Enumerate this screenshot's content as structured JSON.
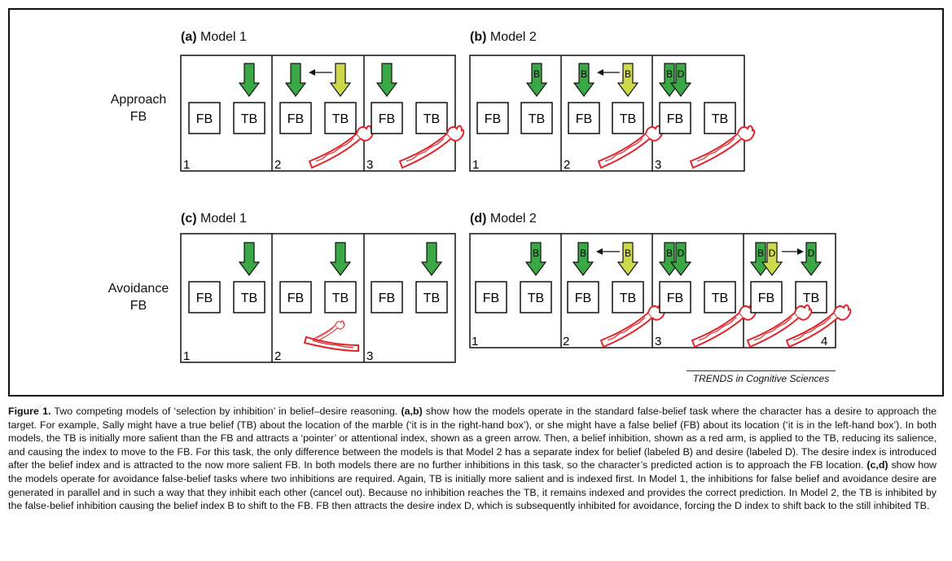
{
  "rows": {
    "approach_label": "Approach\nFB",
    "avoidance_label": "Avoidance\nFB"
  },
  "panels": [
    {
      "id": "a",
      "letter": "(a)",
      "title": "Model 1"
    },
    {
      "id": "b",
      "letter": "(b)",
      "title": "Model 2"
    },
    {
      "id": "c",
      "letter": "(c)",
      "title": "Model 1"
    },
    {
      "id": "d",
      "letter": "(d)",
      "title": "Model 2"
    }
  ],
  "boxes": {
    "false_belief": "FB",
    "true_belief": "TB"
  },
  "index_labels": {
    "belief": "B",
    "desire": "D"
  },
  "steps": [
    "1",
    "2",
    "3",
    "4"
  ],
  "colors": {
    "index_green": "#3aa845",
    "index_yellow": "#cdd94a",
    "inhibition_red": "#e0262b"
  },
  "credit": "TRENDS in Cognitive Sciences",
  "caption": {
    "label": "Figure 1.",
    "sentence1": " Two competing models of ‘selection by inhibition’ in belief–desire reasoning. ",
    "ref_ab": "(a,b)",
    "text_ab": " show how the models operate in the standard false-belief task where the character has a desire to approach the target. For example, Sally might have a true belief (TB) about the location of the marble (‘it is in the right-hand box’), or she might have a false belief (FB) about its location (‘it is in the left-hand box’). In both models, the TB is initially more salient than the FB and attracts a ‘pointer’ or attentional index, shown as a green arrow. Then, a belief inhibition, shown as a red arm, is applied to the TB, reducing its salience, and causing the index to move to the FB. For this task, the only difference between the models is that Model 2 has a separate index for belief (labeled B) and desire (labeled D). The desire index is introduced after the belief index and is attracted to the now more salient FB. In both models there are no further inhibitions in this task, so the character’s predicted action is to approach the FB location. ",
    "ref_cd": "(c,d)",
    "text_cd": " show how the models operate for avoidance false-belief tasks where two inhibitions are required. Again, TB is initially more salient and is indexed first. In Model 1, the inhibitions for false belief and avoidance desire are generated in parallel and in such a way that they inhibit each other (cancel out). Because no inhibition reaches the TB, it remains indexed and provides the correct prediction. In Model 2, the TB is inhibited by the false-belief inhibition causing the belief index B to shift to the FB. FB then attracts the desire index D, which is subsequently inhibited for avoidance, forcing the D index to shift back to the still inhibited TB."
  }
}
